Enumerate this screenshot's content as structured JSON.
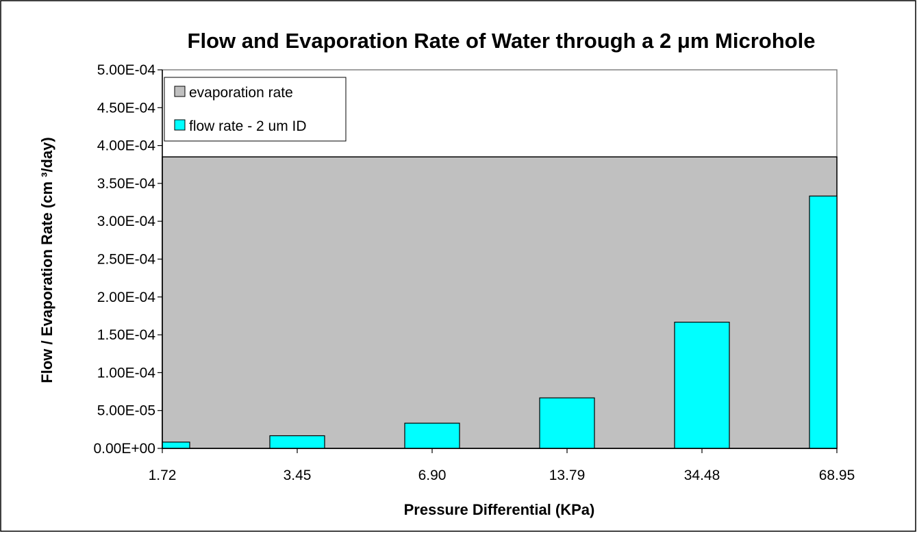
{
  "chart_data": {
    "type": "bar",
    "title": "Flow and Evaporation Rate of Water through a 2 μm Microhole",
    "xlabel": "Pressure Differential (KPa)",
    "ylabel": "Flow / Evaporation Rate (cm ³/day)",
    "categories": [
      "1.72",
      "3.45",
      "6.90",
      "13.79",
      "34.48",
      "68.95"
    ],
    "ytick_labels": [
      "0.00E+00",
      "5.00E-05",
      "1.00E-04",
      "1.50E-04",
      "2.00E-04",
      "2.50E-04",
      "3.00E-04",
      "3.50E-04",
      "4.00E-04",
      "4.50E-04",
      "5.00E-04"
    ],
    "ylim": [
      0,
      0.0005
    ],
    "grid": false,
    "legend_position": "top-left",
    "series": [
      {
        "name": "evaporation rate",
        "type": "area",
        "color": "#c0c0c0",
        "values": [
          0.000385,
          0.000385,
          0.000385,
          0.000385,
          0.000385,
          0.000385
        ]
      },
      {
        "name": "flow rate - 2 um ID",
        "type": "bar",
        "color": "#00ffff",
        "values": [
          8.3e-06,
          1.67e-05,
          3.33e-05,
          6.67e-05,
          0.0001667,
          0.0003333
        ]
      }
    ]
  }
}
